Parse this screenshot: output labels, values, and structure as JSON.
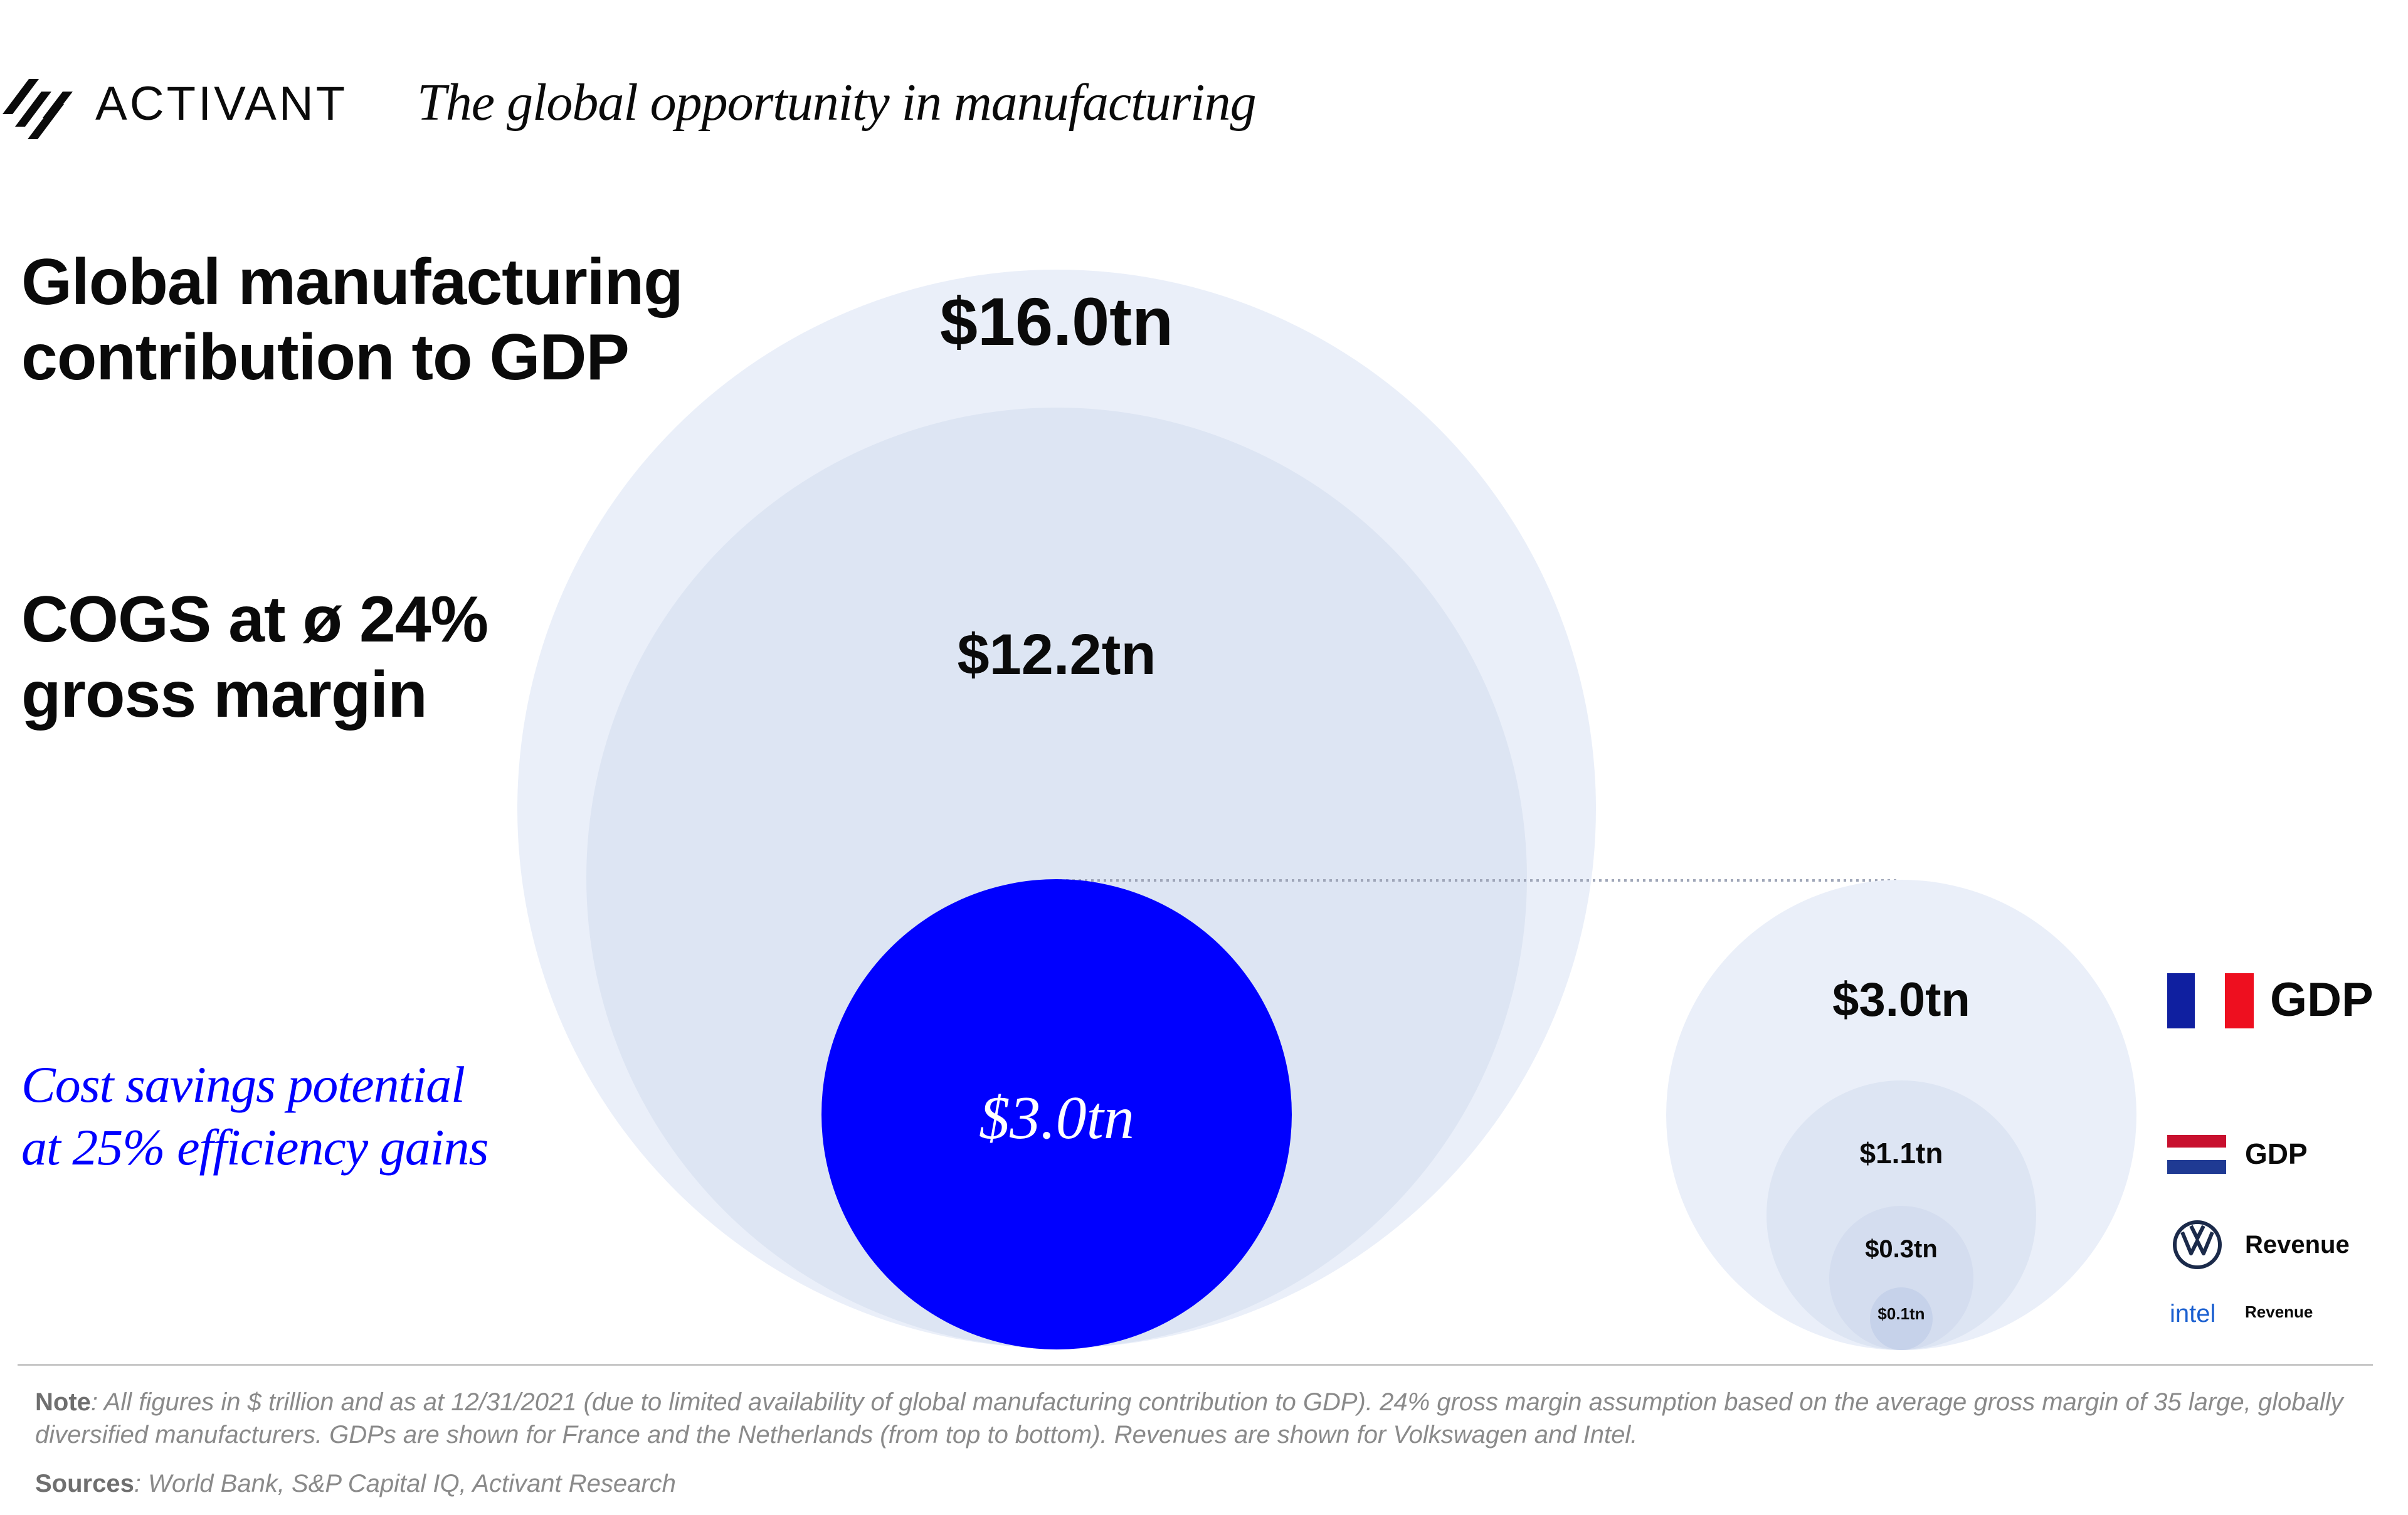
{
  "header": {
    "brand": "ACTIVANT",
    "title": "The global opportunity in manufacturing"
  },
  "labels": {
    "gdp_line1": "Global manufacturing",
    "gdp_line2": "contribution to GDP",
    "cogs_line1": "COGS at ø 24%",
    "cogs_line2": "gross margin",
    "savings_line1": "Cost savings potential",
    "savings_line2": "at 25% efficiency gains"
  },
  "colors": {
    "outer_circle": "#eaeff9",
    "middle_circle": "#dde5f3",
    "savings_circle": "#0000ff",
    "comparison_small": "#d4ddef",
    "comparison_smallest": "#c6d2ea",
    "dotted_line": "#9fa6b8"
  },
  "chart_data": {
    "type": "nested-bubble",
    "unit": "$ trillion",
    "main_bubbles": [
      {
        "name": "Global manufacturing contribution to GDP",
        "value": 16.0,
        "label": "$16.0tn"
      },
      {
        "name": "COGS at ø 24% gross margin",
        "value": 12.2,
        "label": "$12.2tn"
      },
      {
        "name": "Cost savings potential at 25% efficiency gains",
        "value": 3.0,
        "label": "$3.0tn"
      }
    ],
    "comparison_bubbles": [
      {
        "name": "France",
        "metric": "GDP",
        "value": 3.0,
        "label": "$3.0tn",
        "icon": "france-flag-icon"
      },
      {
        "name": "Netherlands",
        "metric": "GDP",
        "value": 1.1,
        "label": "$1.1tn",
        "icon": "netherlands-flag-icon"
      },
      {
        "name": "Volkswagen",
        "metric": "Revenue",
        "value": 0.3,
        "label": "$0.3tn",
        "icon": "volkswagen-logo-icon"
      },
      {
        "name": "Intel",
        "metric": "Revenue",
        "value": 0.1,
        "label": "$0.1tn",
        "icon": "intel-logo-icon",
        "logo_text": "intel"
      }
    ]
  },
  "footer": {
    "note_label": "Note",
    "note_text": ": All figures in $ trillion and as at 12/31/2021 (due to limited availability of global manufacturing contribution to GDP). 24% gross margin assumption based on the average gross margin of 35 large, globally diversified manufacturers. GDPs are shown for France and the Netherlands (from top to bottom). Revenues are shown for Volkswagen and Intel.",
    "sources_label": "Sources",
    "sources_text": ": World Bank, S&P Capital IQ, Activant Research"
  }
}
